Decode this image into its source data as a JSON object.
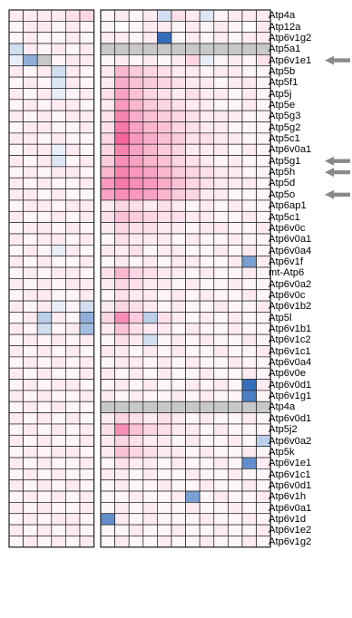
{
  "colors": {
    "high": "#f0327a",
    "low": "#1f5fb5",
    "neutral": "#ffffff",
    "na": "#c8c8c8",
    "grid": "#222222",
    "arrow": "#8a8a8a"
  },
  "chart_data": {
    "type": "heatmap",
    "value_range": [
      -1,
      1
    ],
    "groups": [
      {
        "columns": 6
      },
      {
        "columns": 12
      }
    ],
    "rows": [
      {
        "label": "Atp4a",
        "group1": [
          0.1,
          0.1,
          0.1,
          0.1,
          0.15,
          0.2
        ],
        "group2": [
          0.05,
          0.1,
          0.05,
          0.1,
          -0.2,
          0.15,
          0.1,
          -0.15,
          0.05,
          0.1,
          0.1,
          0.1
        ]
      },
      {
        "label": "Atp12a",
        "group1": [
          0.05,
          0.1,
          0.1,
          0.05,
          0.1,
          0.05
        ],
        "group2": [
          0.05,
          0,
          0.05,
          0.1,
          0.1,
          0.05,
          0.1,
          0.05,
          0.1,
          0.05,
          0,
          0.1
        ]
      },
      {
        "label": "Atp6v1g2",
        "group1": [
          0.05,
          0.1,
          0.05,
          0.05,
          0.1,
          0.05
        ],
        "group2": [
          0.1,
          0.1,
          0.05,
          0.1,
          -0.9,
          0.05,
          0.1,
          0.05,
          0.1,
          0.05,
          0.1,
          0.1
        ]
      },
      {
        "label": "Atp5a1",
        "group1": [
          -0.2,
          0.1,
          0.05,
          0.1,
          0.05,
          0.1
        ],
        "group2": [
          null,
          null,
          null,
          null,
          null,
          null,
          null,
          null,
          null,
          null,
          null,
          null
        ]
      },
      {
        "label": "Atp6v1e1",
        "group1": [
          -0.1,
          -0.5,
          null,
          0.05,
          0.1,
          0.1
        ],
        "group2": [
          0.05,
          0.1,
          0.05,
          0.1,
          0.05,
          0.1,
          0.2,
          -0.1,
          0.05,
          0.1,
          0.05,
          0.15
        ]
      },
      {
        "label": "Atp5b",
        "group1": [
          0.1,
          0.05,
          0.1,
          -0.2,
          0.1,
          0.05
        ],
        "group2": [
          0.1,
          0.35,
          0.25,
          0.2,
          0.15,
          0.1,
          0.1,
          0.05,
          0.1,
          0.1,
          0.05,
          0.05
        ]
      },
      {
        "label": "Atp5f1",
        "group1": [
          0.05,
          0.1,
          0.05,
          -0.15,
          0.1,
          0.05
        ],
        "group2": [
          0.1,
          0.4,
          0.3,
          0.25,
          0.2,
          0.15,
          0.1,
          0.1,
          0.05,
          0.1,
          0.1,
          0.05
        ]
      },
      {
        "label": "Atp5j",
        "group1": [
          0.1,
          0.05,
          0.1,
          -0.1,
          0.05,
          0.1
        ],
        "group2": [
          0.15,
          0.45,
          0.3,
          0.2,
          0.15,
          0.1,
          0.15,
          0.1,
          0.1,
          0.05,
          0.1,
          0.05
        ]
      },
      {
        "label": "Atp5e",
        "group1": [
          0.05,
          0.1,
          0.05,
          0.1,
          0.1,
          0.05
        ],
        "group2": [
          0.1,
          0.5,
          0.35,
          0.25,
          0.2,
          0.15,
          0.1,
          0.1,
          0.05,
          0.05,
          0.1,
          0.05
        ]
      },
      {
        "label": "Atp5g3",
        "group1": [
          0.1,
          0.05,
          0.1,
          0.05,
          0.1,
          0.1
        ],
        "group2": [
          0.15,
          0.6,
          0.4,
          0.3,
          0.25,
          0.2,
          0.15,
          0.1,
          0.1,
          0.1,
          0.05,
          0.05
        ]
      },
      {
        "label": "Atp5g2",
        "group1": [
          0.05,
          0.1,
          0.1,
          0.05,
          0.05,
          0.1
        ],
        "group2": [
          0.15,
          0.65,
          0.45,
          0.35,
          0.3,
          0.2,
          0.15,
          0.1,
          0.1,
          0.05,
          0.05,
          0.05
        ]
      },
      {
        "label": "Atp5c1",
        "group1": [
          0.1,
          0.1,
          0.05,
          0.1,
          0.05,
          0.05
        ],
        "group2": [
          0.2,
          0.75,
          0.5,
          0.4,
          0.3,
          0.25,
          0.15,
          0.15,
          0.1,
          0.1,
          0.05,
          0.05
        ]
      },
      {
        "label": "Atp6v0a1",
        "group1": [
          0.05,
          0.1,
          0.1,
          -0.1,
          0.1,
          0.05
        ],
        "group2": [
          0.2,
          0.6,
          0.45,
          0.35,
          0.25,
          0.2,
          0.1,
          0.1,
          0.1,
          0.05,
          0.1,
          0.05
        ]
      },
      {
        "label": "Atp5g1",
        "group1": [
          0.1,
          0.05,
          0.1,
          -0.15,
          0.05,
          0.1
        ],
        "group2": [
          0.25,
          0.55,
          0.45,
          0.35,
          0.3,
          0.2,
          0.15,
          0.1,
          0.05,
          0.1,
          0.05,
          0.05
        ]
      },
      {
        "label": "Atp5h",
        "group1": [
          0.05,
          0.1,
          0.05,
          0.1,
          0.1,
          0.05
        ],
        "group2": [
          0.35,
          0.6,
          0.5,
          0.45,
          0.35,
          0.25,
          0.2,
          0.15,
          0.1,
          0.1,
          0.05,
          0.05
        ]
      },
      {
        "label": "Atp5d",
        "group1": [
          0.1,
          0.05,
          0.1,
          0.05,
          0.05,
          0.1
        ],
        "group2": [
          0.5,
          0.65,
          0.55,
          0.5,
          0.4,
          0.3,
          0.2,
          0.15,
          0.1,
          0.1,
          0.1,
          0.05
        ]
      },
      {
        "label": "Atp5o",
        "group1": [
          0.1,
          0.1,
          0.05,
          0.1,
          0.05,
          0.05
        ],
        "group2": [
          0.45,
          0.55,
          0.5,
          0.45,
          0.35,
          0.25,
          0.2,
          0.1,
          0.1,
          0.05,
          0.05,
          0.05
        ]
      },
      {
        "label": "Atp6ap1",
        "group1": [
          0.05,
          0.1,
          0.1,
          0.05,
          0.1,
          0.1
        ],
        "group2": [
          0.1,
          0.2,
          0.15,
          0.1,
          0.15,
          0.1,
          0.05,
          0.1,
          0.05,
          0.1,
          0.05,
          0.05
        ]
      },
      {
        "label": "Atp5c1",
        "group1": [
          0.1,
          0.05,
          0.05,
          0.1,
          0.05,
          0.1
        ],
        "group2": [
          0.15,
          0.3,
          0.25,
          0.2,
          0.15,
          0.15,
          0.1,
          0.1,
          0.05,
          0.05,
          0.1,
          0.05
        ]
      },
      {
        "label": "Atp6v0c",
        "group1": [
          0.05,
          0.1,
          0.1,
          0.05,
          0.1,
          0.05
        ],
        "group2": [
          0.1,
          0.2,
          0.15,
          0.15,
          0.1,
          0.1,
          0.05,
          0.1,
          0.1,
          0.05,
          0.05,
          0.1
        ]
      },
      {
        "label": "Atp6v0a1",
        "group1": [
          0.1,
          0.05,
          0.1,
          0.1,
          0.05,
          0.1
        ],
        "group2": [
          0.05,
          0.15,
          0.1,
          0.1,
          0.1,
          0.05,
          0.1,
          0.05,
          0.05,
          0.1,
          0.05,
          0.05
        ]
      },
      {
        "label": "Atp6v0a4",
        "group1": [
          0.05,
          0.1,
          0.05,
          -0.1,
          0.1,
          0.05
        ],
        "group2": [
          0.1,
          0.1,
          0.15,
          0.05,
          0.1,
          0.1,
          0.05,
          0.05,
          0.1,
          0.05,
          0.1,
          0.05
        ]
      },
      {
        "label": "Atp6v1f",
        "group1": [
          0.1,
          0.05,
          0.1,
          0.05,
          0.05,
          0.1
        ],
        "group2": [
          0.05,
          0.1,
          0.05,
          0.1,
          0.05,
          0.1,
          0.1,
          0.05,
          0.05,
          0.1,
          -0.6,
          0.1
        ]
      },
      {
        "label": "mt-Atp6",
        "group1": [
          0.05,
          0.1,
          0.05,
          0.1,
          0.1,
          0.05
        ],
        "group2": [
          0.15,
          0.35,
          0.2,
          0.15,
          0.1,
          0.1,
          0.05,
          0.1,
          0.05,
          0.05,
          0.1,
          0.05
        ]
      },
      {
        "label": "Atp6v0a2",
        "group1": [
          0.1,
          0.05,
          0.1,
          0.05,
          0.1,
          0.1
        ],
        "group2": [
          0.1,
          0.2,
          0.15,
          0.1,
          0.1,
          0.05,
          0.1,
          0.05,
          0.05,
          0.1,
          0.05,
          0.05
        ]
      },
      {
        "label": "Atp6v0c",
        "group1": [
          0.05,
          0.1,
          0.1,
          0.05,
          0.05,
          0.1
        ],
        "group2": [
          0.05,
          0.15,
          0.1,
          0.1,
          0.05,
          0.1,
          0.05,
          0.1,
          0.05,
          0.05,
          0.1,
          0.05
        ]
      },
      {
        "label": "Atp6v1b2",
        "group1": [
          0.1,
          0.05,
          0.1,
          -0.1,
          0.05,
          -0.2
        ],
        "group2": [
          0.1,
          0.2,
          0.15,
          0.1,
          0.05,
          0.1,
          0.05,
          0.05,
          0.1,
          0.05,
          0.05,
          0.1
        ]
      },
      {
        "label": "Atp5l",
        "group1": [
          0.05,
          0.1,
          -0.3,
          0.1,
          0.05,
          -0.5
        ],
        "group2": [
          0.2,
          0.55,
          0.25,
          -0.3,
          0.15,
          0.1,
          0.05,
          0.1,
          0.05,
          0.1,
          0.05,
          0.05
        ]
      },
      {
        "label": "Atp6v1b1",
        "group1": [
          0.1,
          0.05,
          -0.2,
          0.05,
          0.1,
          -0.4
        ],
        "group2": [
          0.1,
          0.3,
          0.15,
          0.1,
          0.1,
          0.05,
          0.1,
          0.05,
          0.05,
          0.1,
          0.05,
          0.05
        ]
      },
      {
        "label": "Atp6v1c2",
        "group1": [
          0.05,
          0.1,
          0.05,
          0.1,
          0.05,
          0.1
        ],
        "group2": [
          0.05,
          0.15,
          0.1,
          -0.2,
          0.05,
          0.1,
          0.05,
          0.1,
          0.05,
          0.05,
          0.1,
          0.05
        ]
      },
      {
        "label": "Atp6v1c1",
        "group1": [
          0.1,
          0.05,
          0.1,
          0.05,
          0.1,
          0.05
        ],
        "group2": [
          0.1,
          0.1,
          0.05,
          0.1,
          0.05,
          0.1,
          0.05,
          0.05,
          0.1,
          0.05,
          0.05,
          0.1
        ]
      },
      {
        "label": "Atp6v0a4",
        "group1": [
          0.05,
          0.1,
          0.05,
          0.1,
          0.05,
          0.1
        ],
        "group2": [
          0.05,
          0.1,
          0.1,
          0.05,
          0.1,
          0.05,
          0.1,
          0.05,
          0.05,
          0.1,
          0.05,
          0.05
        ]
      },
      {
        "label": "Atp6v0e",
        "group1": [
          0.1,
          0.05,
          0.1,
          0.05,
          0.05,
          0.1
        ],
        "group2": [
          0.1,
          0.05,
          0.1,
          0.05,
          0.1,
          0.05,
          0.05,
          0.1,
          0.05,
          0.05,
          0.1,
          0.05
        ]
      },
      {
        "label": "Atp6v0d1",
        "group1": [
          0.05,
          0.1,
          0.05,
          0.1,
          0.1,
          0.05
        ],
        "group2": [
          0.05,
          0.1,
          0.05,
          0.1,
          0.05,
          0.05,
          0.1,
          0.05,
          0.1,
          0.05,
          -0.9,
          0.1
        ]
      },
      {
        "label": "Atp6v1g1",
        "group1": [
          0.1,
          0.05,
          0.1,
          0.05,
          0.05,
          0.1
        ],
        "group2": [
          0.1,
          0.05,
          0.1,
          0.05,
          0.05,
          0.1,
          0.05,
          0.1,
          0.05,
          0.05,
          -0.8,
          0.05
        ]
      },
      {
        "label": "Atp4a",
        "group1": [
          0.05,
          0.1,
          0.05,
          0.1,
          0.05,
          0.05
        ],
        "group2": [
          null,
          null,
          null,
          null,
          null,
          null,
          null,
          null,
          null,
          null,
          null,
          null
        ]
      },
      {
        "label": "Atp6v0d1",
        "group1": [
          0.1,
          0.05,
          0.1,
          0.05,
          0.1,
          0.05
        ],
        "group2": [
          0.1,
          0.2,
          0.15,
          0.1,
          0.15,
          0.1,
          0.05,
          0.1,
          0.05,
          0.05,
          0.1,
          0.05
        ]
      },
      {
        "label": "Atp5j2",
        "group1": [
          0.05,
          0.1,
          0.05,
          0.1,
          0.05,
          0.1
        ],
        "group2": [
          0.15,
          0.55,
          0.3,
          0.2,
          0.15,
          0.1,
          0.1,
          0.05,
          0.1,
          0.05,
          0.05,
          0.05
        ]
      },
      {
        "label": "Atp6v0a2",
        "group1": [
          0.1,
          0.05,
          0.1,
          0.05,
          0.05,
          0.1
        ],
        "group2": [
          0.1,
          0.2,
          0.15,
          0.1,
          0.1,
          0.05,
          0.1,
          0.05,
          0.05,
          0.1,
          0.05,
          -0.3
        ]
      },
      {
        "label": "Atp5k",
        "group1": [
          0.05,
          0.1,
          0.05,
          0.1,
          0.1,
          0.05
        ],
        "group2": [
          0.1,
          0.3,
          0.2,
          0.15,
          0.1,
          0.1,
          0.05,
          0.1,
          0.05,
          0.05,
          0.1,
          0.05
        ]
      },
      {
        "label": "Atp6v1e1",
        "group1": [
          0.1,
          0.05,
          0.1,
          0.05,
          0.05,
          0.1
        ],
        "group2": [
          0.05,
          0.15,
          0.1,
          0.1,
          0.05,
          0.1,
          0.05,
          0.05,
          0.1,
          0.05,
          -0.7,
          0.1
        ]
      },
      {
        "label": "Atp6v1c1",
        "group1": [
          0.05,
          0.1,
          0.05,
          0.1,
          0.05,
          0.05
        ],
        "group2": [
          0.1,
          0.1,
          0.05,
          0.1,
          0.05,
          0.05,
          0.1,
          0.05,
          0.05,
          0.1,
          0.05,
          0.05
        ]
      },
      {
        "label": "Atp6v0d1",
        "group1": [
          0.1,
          0.05,
          0.1,
          0.05,
          0.1,
          0.05
        ],
        "group2": [
          0.05,
          0.1,
          0.05,
          0.05,
          0.1,
          0.05,
          0.05,
          0.1,
          0.05,
          0.05,
          0.1,
          0.05
        ]
      },
      {
        "label": "Atp6v1h",
        "group1": [
          0.05,
          0.1,
          0.05,
          0.1,
          0.05,
          0.1
        ],
        "group2": [
          0.05,
          0.05,
          0.1,
          0.05,
          0.05,
          0.1,
          -0.6,
          0.05,
          0.1,
          0.05,
          0.05,
          0.1
        ]
      },
      {
        "label": "Atp6v0a1",
        "group1": [
          0.1,
          0.05,
          0.1,
          0.05,
          0.05,
          0.1
        ],
        "group2": [
          0.05,
          0.1,
          0.05,
          0.1,
          0.05,
          0.05,
          0.1,
          0.05,
          0.05,
          0.1,
          0.05,
          0.05
        ]
      },
      {
        "label": "Atp6v1d",
        "group1": [
          0.05,
          0.1,
          0.05,
          0.1,
          0.1,
          0.05
        ],
        "group2": [
          -0.7,
          0.1,
          0.05,
          0.1,
          0.05,
          0.05,
          0.05,
          0.1,
          0.05,
          0.05,
          0.1,
          0.05
        ]
      },
      {
        "label": "Atp6v1e2",
        "group1": [
          0.1,
          0.05,
          0.1,
          0.05,
          0.1,
          0.05
        ],
        "group2": [
          0.05,
          0.05,
          0.1,
          0.05,
          0.05,
          0.1,
          0.05,
          0.05,
          0.1,
          0.05,
          0.05,
          0.1
        ]
      },
      {
        "label": "Atp6v1g2",
        "group1": [
          0.05,
          0.1,
          0.05,
          0.1,
          0.05,
          0.1
        ],
        "group2": [
          0.05,
          0.1,
          0.05,
          0.05,
          0.1,
          0.05,
          0.05,
          0.1,
          0.05,
          0.05,
          0.1,
          0.05
        ]
      }
    ],
    "highlighted_rows": [
      4,
      13,
      14,
      16
    ]
  }
}
